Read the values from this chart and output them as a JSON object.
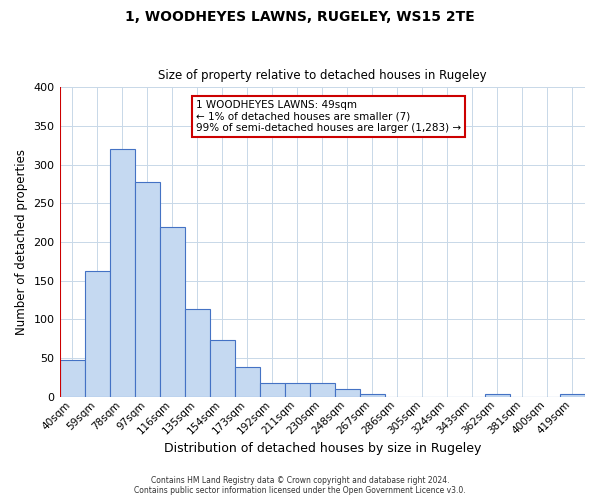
{
  "title": "1, WOODHEYES LAWNS, RUGELEY, WS15 2TE",
  "subtitle": "Size of property relative to detached houses in Rugeley",
  "xlabel": "Distribution of detached houses by size in Rugeley",
  "ylabel": "Number of detached properties",
  "bar_labels": [
    "40sqm",
    "59sqm",
    "78sqm",
    "97sqm",
    "116sqm",
    "135sqm",
    "154sqm",
    "173sqm",
    "192sqm",
    "211sqm",
    "230sqm",
    "248sqm",
    "267sqm",
    "286sqm",
    "305sqm",
    "324sqm",
    "343sqm",
    "362sqm",
    "381sqm",
    "400sqm",
    "419sqm"
  ],
  "bar_values": [
    48,
    163,
    320,
    278,
    220,
    114,
    73,
    39,
    18,
    18,
    18,
    10,
    4,
    0,
    0,
    0,
    0,
    4,
    0,
    0,
    3
  ],
  "bar_color": "#c5d9f1",
  "bar_edgecolor": "#4472c4",
  "annotation_lines": [
    "1 WOODHEYES LAWNS: 49sqm",
    "← 1% of detached houses are smaller (7)",
    "99% of semi-detached houses are larger (1,283) →"
  ],
  "annotation_box_color": "#ffffff",
  "annotation_box_edgecolor": "#cc0000",
  "redline_color": "#cc0000",
  "ylim": [
    0,
    400
  ],
  "yticks": [
    0,
    50,
    100,
    150,
    200,
    250,
    300,
    350,
    400
  ],
  "footer_lines": [
    "Contains HM Land Registry data © Crown copyright and database right 2024.",
    "Contains public sector information licensed under the Open Government Licence v3.0."
  ],
  "background_color": "#ffffff",
  "grid_color": "#c8d8e8"
}
